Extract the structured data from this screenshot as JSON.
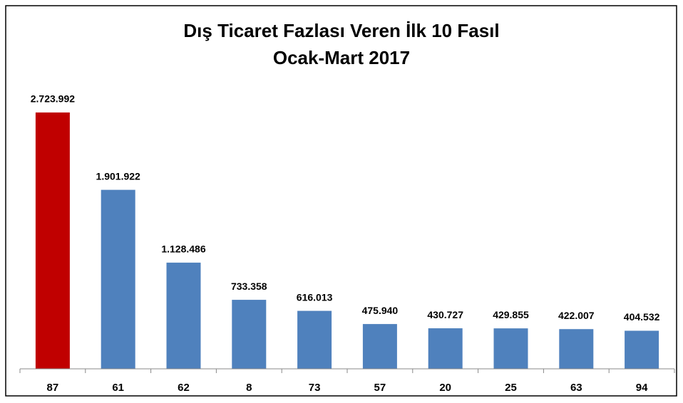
{
  "chart_data": {
    "type": "bar",
    "title": "Dış Ticaret Fazlası Veren İlk 10 Fasıl",
    "subtitle": "Ocak-Mart 2017",
    "categories": [
      "87",
      "61",
      "62",
      "8",
      "73",
      "57",
      "20",
      "25",
      "63",
      "94"
    ],
    "values": [
      2723992,
      1901922,
      1128486,
      733358,
      616013,
      475940,
      430727,
      429855,
      422007,
      404532
    ],
    "value_labels": [
      "2.723.992",
      "1.901.922",
      "1.128.486",
      "733.358",
      "616.013",
      "475.940",
      "430.727",
      "429.855",
      "422.007",
      "404.532"
    ],
    "colors": [
      "#c00000",
      "#4f81bd",
      "#4f81bd",
      "#4f81bd",
      "#4f81bd",
      "#4f81bd",
      "#4f81bd",
      "#4f81bd",
      "#4f81bd",
      "#4f81bd"
    ],
    "ylim": [
      0,
      3000000
    ]
  }
}
